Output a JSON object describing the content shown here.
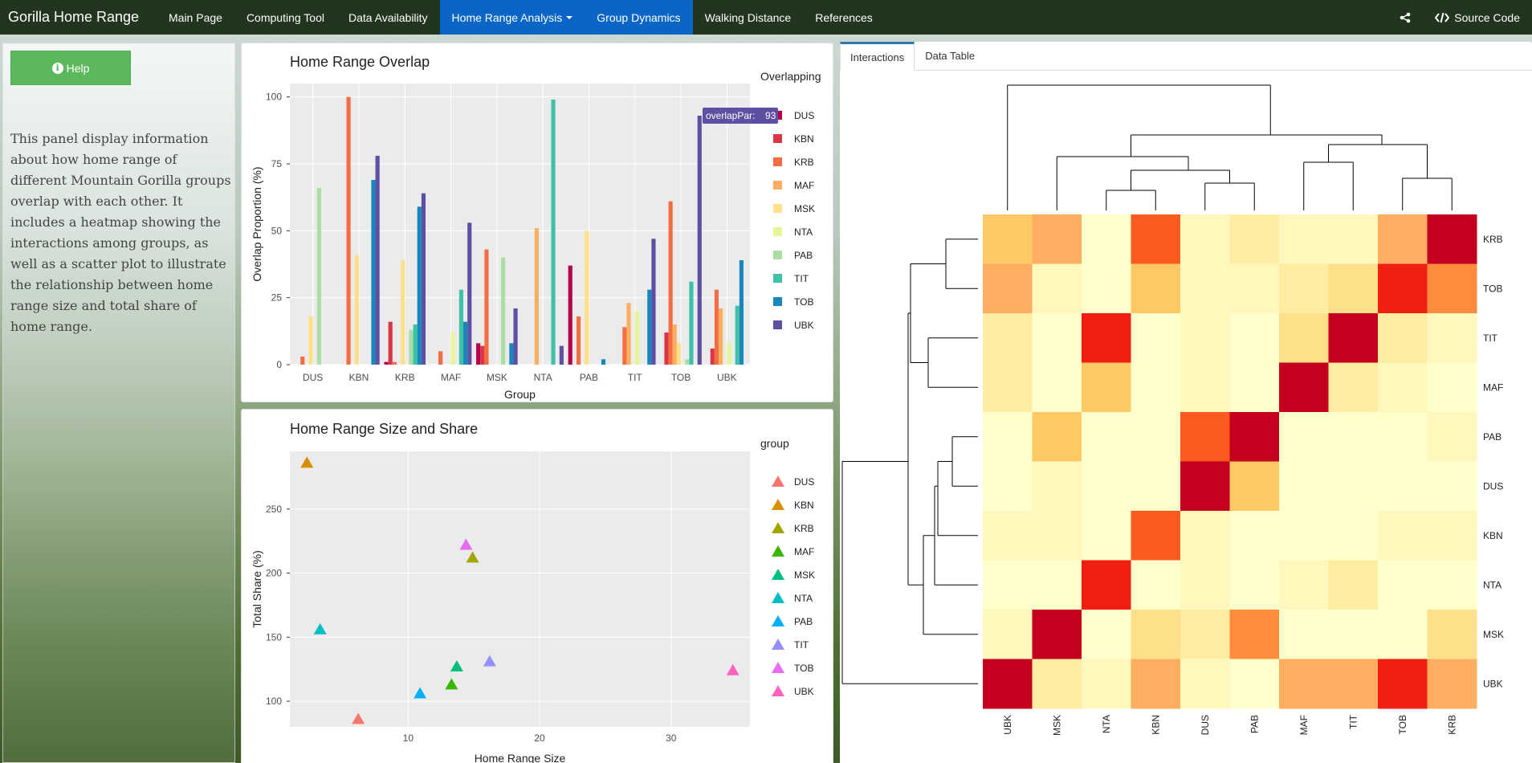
{
  "navbar": {
    "brand": "Gorilla Home Range",
    "items": [
      "Main Page",
      "Computing Tool",
      "Data Availability",
      "Home Range Analysis",
      "Group Dynamics",
      "Walking Distance",
      "References"
    ],
    "share_icon": "share-icon",
    "source_code": "Source Code",
    "colors": {
      "background": "#22361f",
      "active": "#0a66c6"
    }
  },
  "sidebar": {
    "help_label": "Help",
    "description": "This panel display information about how home range of different Mountain Gorilla groups overlap with each other. It includes a heatmap showing the interactions among groups, as well as a scatter plot to illustrate the relationship between home range size and total share of home range."
  },
  "tabs": [
    "Interactions",
    "Data Table"
  ],
  "chart_data": [
    {
      "type": "bar",
      "title": "Home Range Overlap",
      "xlabel": "Group",
      "ylabel": "Overlap Proportion (%)",
      "ylim": [
        0,
        105
      ],
      "yticks": [
        0,
        25,
        50,
        75,
        100
      ],
      "legend_title": "Overlapping",
      "tooltip": {
        "label": "overlapPar:",
        "value": "93"
      },
      "categories": [
        "DUS",
        "KBN",
        "KRB",
        "MAF",
        "MSK",
        "NTA",
        "PAB",
        "TIT",
        "TOB",
        "UBK"
      ],
      "series": [
        {
          "name": "DUS",
          "color": "#b5004a",
          "values": [
            0,
            0,
            1,
            0,
            8,
            0,
            37,
            0,
            0,
            0
          ]
        },
        {
          "name": "KBN",
          "color": "#dc3545",
          "values": [
            0,
            0,
            16,
            0,
            7,
            0,
            0,
            0,
            12,
            6
          ]
        },
        {
          "name": "KRB",
          "color": "#f46d43",
          "values": [
            3,
            100,
            1,
            5,
            43,
            0,
            18,
            14,
            61,
            28
          ]
        },
        {
          "name": "MAF",
          "color": "#fdae61",
          "values": [
            0,
            0,
            0,
            0,
            0,
            51,
            0,
            23,
            15,
            21
          ]
        },
        {
          "name": "MSK",
          "color": "#fee08b",
          "values": [
            18,
            41,
            39,
            0,
            0,
            0,
            50,
            0,
            8,
            0
          ]
        },
        {
          "name": "NTA",
          "color": "#e6f598",
          "values": [
            0,
            0,
            0,
            12,
            0,
            0,
            0,
            20,
            0,
            8
          ]
        },
        {
          "name": "PAB",
          "color": "#abdda4",
          "values": [
            66,
            0,
            13,
            0,
            40,
            0,
            0,
            0,
            2,
            0
          ]
        },
        {
          "name": "TIT",
          "color": "#3fc1a8",
          "values": [
            0,
            0,
            15,
            28,
            0,
            99,
            0,
            0,
            31,
            22
          ]
        },
        {
          "name": "TOB",
          "color": "#1787bd",
          "values": [
            0,
            69,
            59,
            16,
            8,
            0,
            2,
            28,
            0,
            39
          ]
        },
        {
          "name": "UBK",
          "color": "#5e4fa2",
          "values": [
            0,
            78,
            64,
            53,
            21,
            7,
            0,
            47,
            93,
            0
          ]
        }
      ]
    },
    {
      "type": "scatter",
      "title": "Home Range Size and Share",
      "xlabel": "Home Range Size",
      "ylabel": "Total Share (%)",
      "xlim": [
        1,
        36
      ],
      "ylim": [
        80,
        295
      ],
      "xticks": [
        10,
        20,
        30
      ],
      "yticks": [
        100,
        150,
        200,
        250
      ],
      "legend_title": "group",
      "points": [
        {
          "group": "DUS",
          "x": 6.2,
          "y": 86,
          "color": "#f8766d"
        },
        {
          "group": "KBN",
          "x": 2.3,
          "y": 286,
          "color": "#d89000"
        },
        {
          "group": "KRB",
          "x": 14.9,
          "y": 212,
          "color": "#a3a500"
        },
        {
          "group": "MAF",
          "x": 13.3,
          "y": 113,
          "color": "#39b600"
        },
        {
          "group": "MSK",
          "x": 13.7,
          "y": 127,
          "color": "#00bf7d"
        },
        {
          "group": "NTA",
          "x": 3.3,
          "y": 156,
          "color": "#00bfc4"
        },
        {
          "group": "PAB",
          "x": 10.9,
          "y": 106,
          "color": "#00b0f6"
        },
        {
          "group": "TIT",
          "x": 16.2,
          "y": 131,
          "color": "#9590ff"
        },
        {
          "group": "TOB",
          "x": 14.4,
          "y": 222,
          "color": "#e76bf3"
        },
        {
          "group": "UBK",
          "x": 34.7,
          "y": 124,
          "color": "#ff62bc"
        }
      ]
    },
    {
      "type": "heatmap",
      "rows": [
        "KRB",
        "TOB",
        "TIT",
        "MAF",
        "PAB",
        "DUS",
        "KBN",
        "NTA",
        "MSK",
        "UBK"
      ],
      "columns": [
        "UBK",
        "MSK",
        "NTA",
        "KBN",
        "DUS",
        "PAB",
        "MAF",
        "TIT",
        "TOB",
        "KRB"
      ],
      "values": [
        [
          4,
          5,
          0,
          7,
          1,
          2,
          1,
          1,
          5,
          9
        ],
        [
          5,
          1,
          0,
          4,
          1,
          1,
          2,
          3,
          8,
          6
        ],
        [
          2,
          0,
          8,
          0,
          1,
          0,
          3,
          9,
          2,
          1
        ],
        [
          2,
          0,
          4,
          0,
          1,
          0,
          9,
          2,
          1,
          0
        ],
        [
          0,
          4,
          0,
          0,
          7,
          9,
          0,
          0,
          0,
          1
        ],
        [
          0,
          1,
          0,
          0,
          9,
          4,
          0,
          0,
          0,
          0
        ],
        [
          1,
          1,
          0,
          7,
          1,
          0,
          0,
          0,
          1,
          1
        ],
        [
          0,
          0,
          8,
          0,
          1,
          0,
          1,
          2,
          0,
          0
        ],
        [
          1,
          9,
          0,
          3,
          2,
          6,
          0,
          0,
          0,
          3
        ],
        [
          9,
          2,
          1,
          5,
          1,
          0,
          5,
          5,
          8,
          5
        ]
      ],
      "palette": [
        "#ffffcc",
        "#fff7bb",
        "#feeda0",
        "#fee08b",
        "#fec965",
        "#fdae61",
        "#fd8d3c",
        "#fc5a1f",
        "#f01f10",
        "#c4001e"
      ]
    }
  ]
}
